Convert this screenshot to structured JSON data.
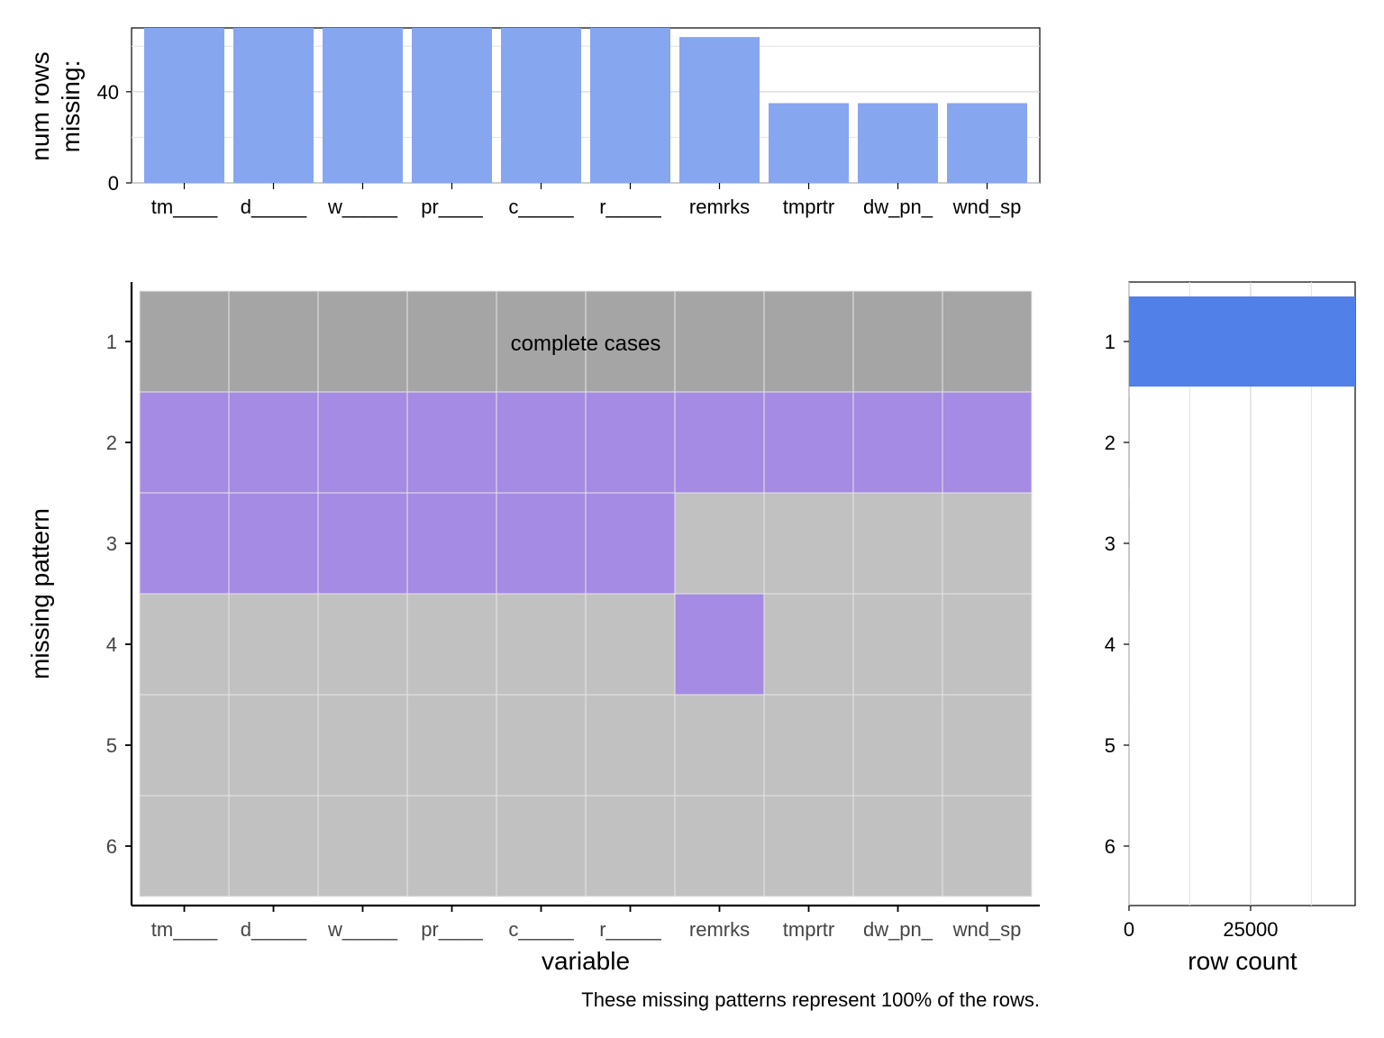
{
  "chart_data": [
    {
      "type": "bar",
      "name": "missing-counts",
      "categories": [
        "tm____",
        "d_____",
        "w_____",
        "pr____",
        "c_____",
        "r_____",
        "remrks",
        "tmprtr",
        "dw_pn_",
        "wnd_sp"
      ],
      "values": [
        68,
        68,
        68,
        68,
        68,
        68,
        64,
        35,
        35,
        35
      ],
      "ylabel_line1": "num rows",
      "ylabel_line2": "missing:",
      "ylim": [
        0,
        68
      ],
      "yticks": [
        0,
        40
      ],
      "grid": true,
      "bar_color": "#87a6f0"
    },
    {
      "type": "heatmap",
      "name": "missing-patterns",
      "variables": [
        "tm____",
        "d_____",
        "w_____",
        "pr____",
        "c_____",
        "r_____",
        "remrks",
        "tmprtr",
        "dw_pn_",
        "wnd_sp"
      ],
      "patterns": [
        "1",
        "2",
        "3",
        "4",
        "5",
        "6"
      ],
      "matrix": [
        [
          "complete",
          "complete",
          "complete",
          "complete",
          "complete",
          "complete",
          "complete",
          "complete",
          "complete",
          "complete"
        ],
        [
          "missing",
          "missing",
          "missing",
          "missing",
          "missing",
          "missing",
          "missing",
          "missing",
          "missing",
          "missing"
        ],
        [
          "missing",
          "missing",
          "missing",
          "missing",
          "missing",
          "missing",
          "present",
          "present",
          "present",
          "present"
        ],
        [
          "present",
          "present",
          "present",
          "present",
          "present",
          "present",
          "missing",
          "present",
          "present",
          "present"
        ],
        [
          "present",
          "present",
          "present",
          "present",
          "present",
          "present",
          "present",
          "present",
          "present",
          "present"
        ],
        [
          "present",
          "present",
          "present",
          "present",
          "present",
          "present",
          "present",
          "present",
          "present",
          "present"
        ]
      ],
      "xlabel": "variable",
      "ylabel": "missing pattern",
      "annotation": "complete cases",
      "colors": {
        "complete": "#a5a5a5",
        "missing": "#a58be3",
        "present": "#c1c1c1"
      }
    },
    {
      "type": "bar",
      "name": "row-counts",
      "orientation": "horizontal",
      "categories": [
        "1",
        "2",
        "3",
        "4",
        "5",
        "6"
      ],
      "values": [
        46500,
        35,
        29,
        4,
        2,
        1
      ],
      "xlabel": "row count",
      "xlim": [
        0,
        46500
      ],
      "xticks": [
        0,
        25000
      ],
      "grid": true,
      "bar_color": "#5180e8"
    }
  ],
  "caption": "These missing patterns represent 100% of the rows."
}
